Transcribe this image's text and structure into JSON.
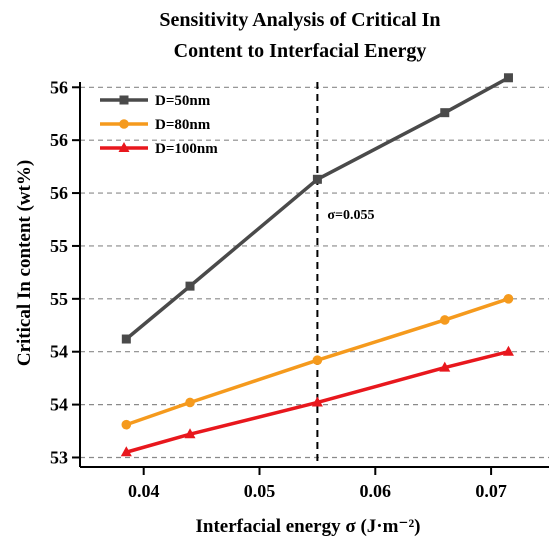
{
  "chart_data": {
    "type": "line",
    "title_lines": [
      "Sensitivity Analysis of Critical In",
      "Content to Interfacial Energy"
    ],
    "xlabel": "Interfacial energy σ (J·m⁻²)",
    "ylabel": "Critical In content (wt%)",
    "xlim": [
      0.0345,
      0.075
    ],
    "ylim": [
      52.91,
      56.55
    ],
    "x_ticks": [
      0.04,
      0.05,
      0.06,
      0.07
    ],
    "x_tick_labels": [
      "0.04",
      "0.05",
      "0.06",
      "0.07"
    ],
    "y_ticks": [
      53.0,
      53.5,
      54.0,
      54.5,
      55.0,
      55.5,
      56.0,
      56.5
    ],
    "y_tick_labels": [
      "53",
      "54",
      "54",
      "55",
      "55",
      "56",
      "56",
      "56"
    ],
    "grid": "horizontal dashed",
    "legend_position": "top-left",
    "series": [
      {
        "name": "D=50nm",
        "color": "#4a4a4a",
        "marker": "square",
        "x": [
          0.0385,
          0.044,
          0.055,
          0.066,
          0.0715
        ],
        "y": [
          54.12,
          54.62,
          55.63,
          56.26,
          56.59
        ]
      },
      {
        "name": "D=80nm",
        "color": "#f59a1d",
        "marker": "circle",
        "x": [
          0.0385,
          0.044,
          0.055,
          0.066,
          0.0715
        ],
        "y": [
          53.31,
          53.52,
          53.92,
          54.3,
          54.5
        ]
      },
      {
        "name": "D=100nm",
        "color": "#e8171d",
        "marker": "triangle",
        "x": [
          0.0385,
          0.044,
          0.055,
          0.066,
          0.0715
        ],
        "y": [
          53.05,
          53.22,
          53.52,
          53.85,
          54.0
        ]
      }
    ],
    "vline": {
      "x": 0.055,
      "label": "σ=0.055"
    }
  }
}
